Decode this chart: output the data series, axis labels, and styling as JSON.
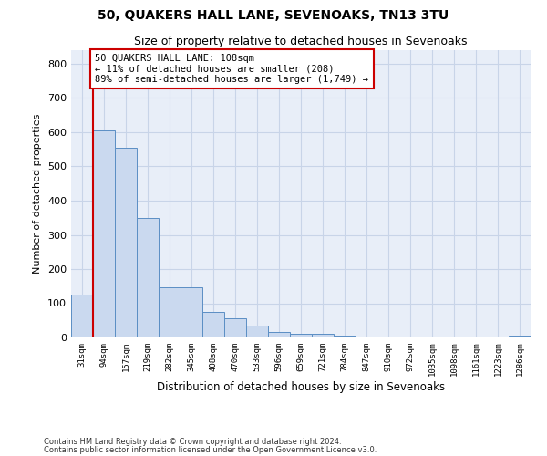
{
  "title": "50, QUAKERS HALL LANE, SEVENOAKS, TN13 3TU",
  "subtitle": "Size of property relative to detached houses in Sevenoaks",
  "xlabel": "Distribution of detached houses by size in Sevenoaks",
  "ylabel": "Number of detached properties",
  "categories": [
    "31sqm",
    "94sqm",
    "157sqm",
    "219sqm",
    "282sqm",
    "345sqm",
    "408sqm",
    "470sqm",
    "533sqm",
    "596sqm",
    "659sqm",
    "721sqm",
    "784sqm",
    "847sqm",
    "910sqm",
    "972sqm",
    "1035sqm",
    "1098sqm",
    "1161sqm",
    "1223sqm",
    "1286sqm"
  ],
  "values": [
    125,
    605,
    555,
    348,
    148,
    148,
    75,
    55,
    35,
    15,
    10,
    10,
    5,
    0,
    0,
    0,
    0,
    0,
    0,
    0,
    5
  ],
  "bar_color": "#cad9ef",
  "bar_edge_color": "#5b8ec4",
  "property_line_bar_index": 1,
  "annotation_text": "50 QUAKERS HALL LANE: 108sqm\n← 11% of detached houses are smaller (208)\n89% of semi-detached houses are larger (1,749) →",
  "annotation_box_color": "#ffffff",
  "annotation_box_edge_color": "#cc0000",
  "property_line_color": "#cc0000",
  "ylim": [
    0,
    840
  ],
  "yticks": [
    0,
    100,
    200,
    300,
    400,
    500,
    600,
    700,
    800
  ],
  "grid_color": "#c8d4e8",
  "background_color": "#e8eef8",
  "footer_line1": "Contains HM Land Registry data © Crown copyright and database right 2024.",
  "footer_line2": "Contains public sector information licensed under the Open Government Licence v3.0.",
  "title_fontsize": 10,
  "subtitle_fontsize": 9,
  "annotation_fontsize": 7.5
}
